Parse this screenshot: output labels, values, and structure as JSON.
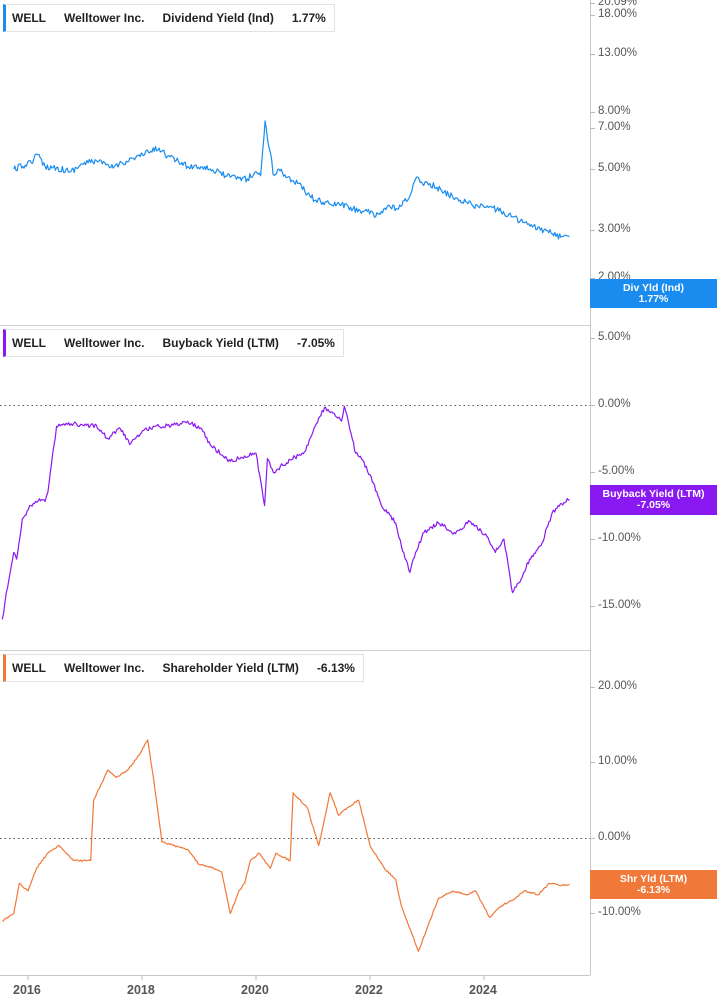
{
  "x_axis": {
    "ticks": [
      "2016",
      "2018",
      "2020",
      "2022",
      "2024"
    ]
  },
  "panels": [
    {
      "ticker": "WELL",
      "company": "Welltower Inc.",
      "metric": "Dividend Yield (Ind)",
      "value": "1.77%",
      "badge_label": "Div Yld (Ind)",
      "badge_value": "1.77%",
      "color": "#1a8cf0",
      "y_ticks": [
        "20.09%",
        "18.00%",
        "13.00%",
        "8.00%",
        "7.00%",
        "5.00%",
        "3.00%",
        "2.00%"
      ]
    },
    {
      "ticker": "WELL",
      "company": "Welltower Inc.",
      "metric": "Buyback Yield (LTM)",
      "value": "-7.05%",
      "badge_label": "Buyback Yield (LTM)",
      "badge_value": "-7.05%",
      "color": "#8a18f0",
      "y_ticks": [
        "5.00%",
        "0.00%",
        "-5.00%",
        "-10.00%",
        "-15.00%"
      ]
    },
    {
      "ticker": "WELL",
      "company": "Welltower Inc.",
      "metric": "Shareholder Yield (LTM)",
      "value": "-6.13%",
      "badge_label": "Shr Yld (LTM)",
      "badge_value": "-6.13%",
      "color": "#f07838",
      "y_ticks": [
        "20.00%",
        "10.00%",
        "0.00%",
        "-10.00%"
      ]
    }
  ],
  "chart_data": [
    {
      "type": "line",
      "title": "Dividend Yield (Ind)",
      "y_scale": "log",
      "ylim": [
        1.5,
        20.09
      ],
      "series": [
        {
          "name": "Div Yld (Ind)",
          "x": [
            2015.75,
            2015.95,
            2016.1,
            2016.15,
            2016.3,
            2016.5,
            2016.75,
            2016.95,
            2017.2,
            2017.45,
            2017.6,
            2017.85,
            2018.05,
            2018.3,
            2018.45,
            2018.6,
            2018.8,
            2019.1,
            2019.3,
            2019.55,
            2019.85,
            2020.0,
            2020.08,
            2020.16,
            2020.2,
            2020.25,
            2020.3,
            2020.4,
            2020.55,
            2020.75,
            2020.9,
            2021.05,
            2021.3,
            2021.5,
            2021.7,
            2021.95,
            2022.1,
            2022.3,
            2022.5,
            2022.7,
            2022.8,
            2022.9,
            2023.05,
            2023.3,
            2023.5,
            2023.7,
            2023.9,
            2024.1,
            2024.3,
            2024.5,
            2024.7,
            2024.85,
            2025.05,
            2025.2,
            2025.35,
            2025.5
          ],
          "y": [
            5.0,
            5.3,
            5.8,
            6.3,
            5.2,
            5.1,
            4.8,
            5.4,
            5.7,
            5.1,
            5.4,
            5.9,
            6.3,
            6.9,
            6.1,
            5.7,
            5.2,
            5.2,
            4.8,
            4.4,
            4.3,
            4.8,
            4.5,
            10.5,
            8.0,
            6.5,
            4.6,
            5.0,
            4.4,
            4.0,
            3.4,
            3.1,
            2.9,
            2.9,
            2.7,
            2.6,
            2.4,
            2.8,
            2.7,
            3.3,
            4.3,
            4.1,
            4.0,
            3.5,
            3.2,
            3.0,
            2.8,
            2.8,
            2.6,
            2.4,
            2.2,
            2.05,
            1.95,
            1.85,
            1.75,
            1.77
          ]
        }
      ]
    },
    {
      "type": "line",
      "title": "Buyback Yield (LTM)",
      "ylim": [
        -16.5,
        7
      ],
      "series": [
        {
          "name": "Buyback Yield (LTM)",
          "x": [
            2015.55,
            2015.62,
            2015.75,
            2015.8,
            2015.9,
            2016.05,
            2016.2,
            2016.3,
            2016.35,
            2016.5,
            2016.8,
            2016.9,
            2017.2,
            2017.4,
            2017.6,
            2017.8,
            2018.05,
            2018.3,
            2018.55,
            2018.8,
            2019.05,
            2019.2,
            2019.55,
            2019.8,
            2020.0,
            2020.15,
            2020.2,
            2020.3,
            2020.6,
            2020.85,
            2021.0,
            2021.2,
            2021.5,
            2021.55,
            2021.75,
            2021.85,
            2022.0,
            2022.2,
            2022.45,
            2022.55,
            2022.7,
            2022.8,
            2022.95,
            2023.2,
            2023.5,
            2023.75,
            2023.85,
            2024.05,
            2024.2,
            2024.35,
            2024.5,
            2024.65,
            2024.8,
            2025.0,
            2025.2,
            2025.4,
            2025.5
          ],
          "y": [
            -16.0,
            -14.0,
            -11.0,
            -11.5,
            -8.5,
            -7.5,
            -7.0,
            -7.2,
            -6.5,
            -1.6,
            -1.4,
            -1.6,
            -1.5,
            -2.5,
            -1.7,
            -2.9,
            -1.8,
            -1.6,
            -1.5,
            -1.2,
            -1.8,
            -3.0,
            -4.2,
            -3.8,
            -3.6,
            -7.5,
            -4.0,
            -5.0,
            -4.1,
            -3.5,
            -2.0,
            -0.2,
            -1.2,
            -0.1,
            -3.6,
            -4.0,
            -5.2,
            -7.5,
            -8.8,
            -10.5,
            -12.5,
            -11.0,
            -9.5,
            -8.8,
            -9.6,
            -8.7,
            -9.0,
            -9.8,
            -11.0,
            -10.0,
            -14.0,
            -13.0,
            -11.5,
            -10.5,
            -8.0,
            -7.3,
            -7.05
          ]
        }
      ]
    },
    {
      "type": "line",
      "title": "Shareholder Yield (LTM)",
      "ylim": [
        -18,
        25
      ],
      "series": [
        {
          "name": "Shr Yld (LTM)",
          "x": [
            2015.55,
            2015.75,
            2015.85,
            2016.0,
            2016.15,
            2016.35,
            2016.55,
            2016.8,
            2017.1,
            2017.15,
            2017.4,
            2017.55,
            2017.75,
            2017.95,
            2018.1,
            2018.2,
            2018.35,
            2018.55,
            2018.8,
            2019.0,
            2019.25,
            2019.4,
            2019.55,
            2019.7,
            2019.8,
            2019.9,
            2020.05,
            2020.25,
            2020.35,
            2020.6,
            2020.65,
            2020.9,
            2021.1,
            2021.3,
            2021.45,
            2021.6,
            2021.8,
            2022.0,
            2022.25,
            2022.45,
            2022.55,
            2022.75,
            2022.85,
            2023.0,
            2023.2,
            2023.45,
            2023.7,
            2023.85,
            2024.1,
            2024.3,
            2024.55,
            2024.7,
            2024.95,
            2025.15,
            2025.35,
            2025.5
          ],
          "y": [
            -11.0,
            -10.0,
            -6.0,
            -7.0,
            -4.0,
            -2.0,
            -1.0,
            -3.0,
            -3.0,
            5.0,
            9.0,
            8.0,
            9.0,
            11.0,
            13.0,
            8.0,
            -0.5,
            -1.0,
            -1.5,
            -3.5,
            -4.0,
            -4.5,
            -10.0,
            -7.0,
            -6.0,
            -3.0,
            -2.0,
            -4.0,
            -2.0,
            -3.0,
            6.0,
            4.0,
            -1.0,
            6.0,
            3.0,
            4.0,
            5.0,
            -1.0,
            -4.0,
            -5.5,
            -9.0,
            -13.0,
            -15.0,
            -12.0,
            -8.0,
            -7.0,
            -7.5,
            -7.0,
            -10.5,
            -9.0,
            -8.0,
            -7.0,
            -7.5,
            -6.0,
            -6.3,
            -6.13
          ]
        }
      ]
    }
  ]
}
